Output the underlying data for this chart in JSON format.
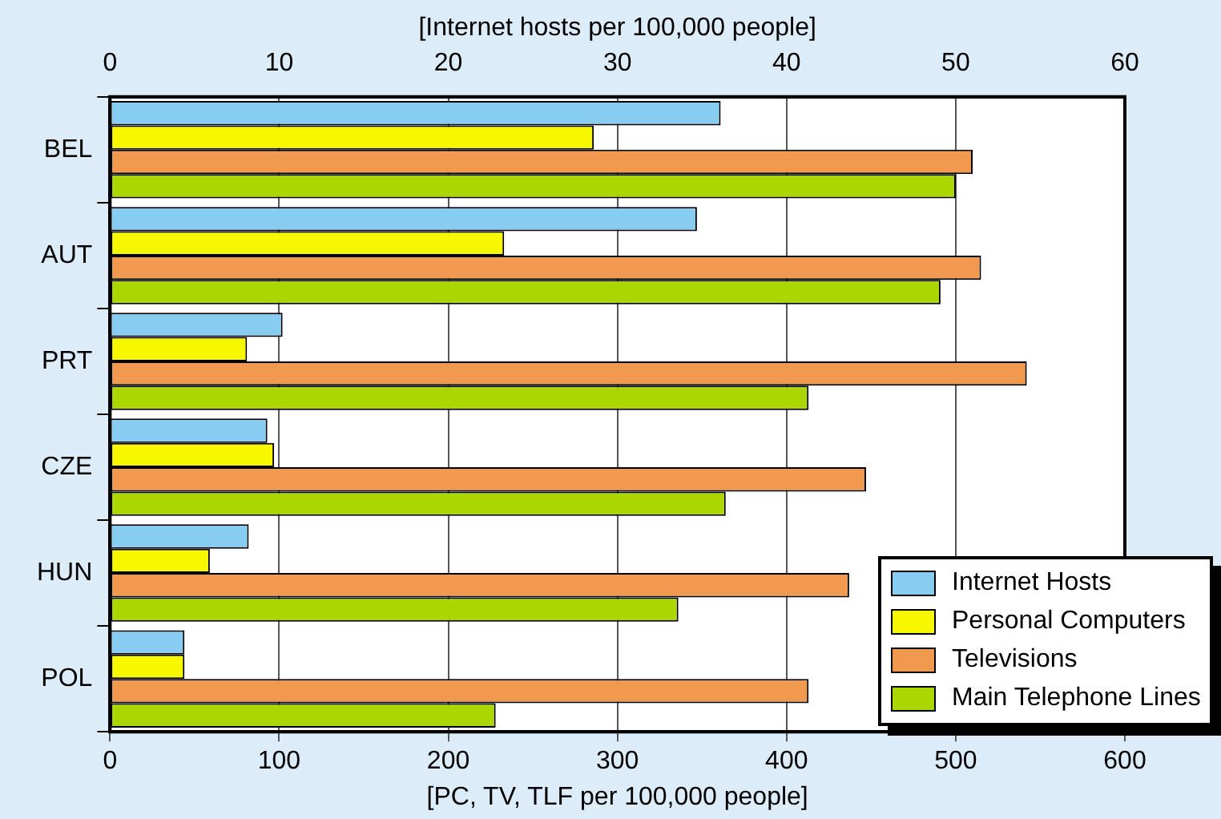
{
  "chart_data": {
    "type": "bar",
    "orientation": "horizontal",
    "categories": [
      "BEL",
      "AUT",
      "PRT",
      "CZE",
      "HUN",
      "POL"
    ],
    "series": [
      {
        "name": "Internet Hosts",
        "color": "#87cdf2",
        "axis": "x2",
        "values": [
          36.1,
          34.7,
          10.2,
          9.3,
          8.2,
          4.4
        ]
      },
      {
        "name": "Personal Computers",
        "color": "#f7f700",
        "values": [
          286,
          233,
          81,
          97,
          59,
          44
        ]
      },
      {
        "name": "Televisions",
        "color": "#f0994f",
        "values": [
          510,
          515,
          542,
          447,
          437,
          413
        ]
      },
      {
        "name": "Main Telephone Lines",
        "color": "#acd600",
        "values": [
          500,
          491,
          413,
          364,
          336,
          228
        ]
      }
    ],
    "xlim": [
      0,
      600
    ],
    "xticks": [
      0,
      100,
      200,
      300,
      400,
      500,
      600
    ],
    "xlabel": "[PC, TV, TLF per 100,000 people]",
    "x2lim": [
      0,
      60
    ],
    "x2ticks": [
      0,
      10,
      20,
      30,
      40,
      50,
      60
    ],
    "x2label": "[Internet hosts per 100,000 people]",
    "grid": "x",
    "legend": "bottom right"
  }
}
